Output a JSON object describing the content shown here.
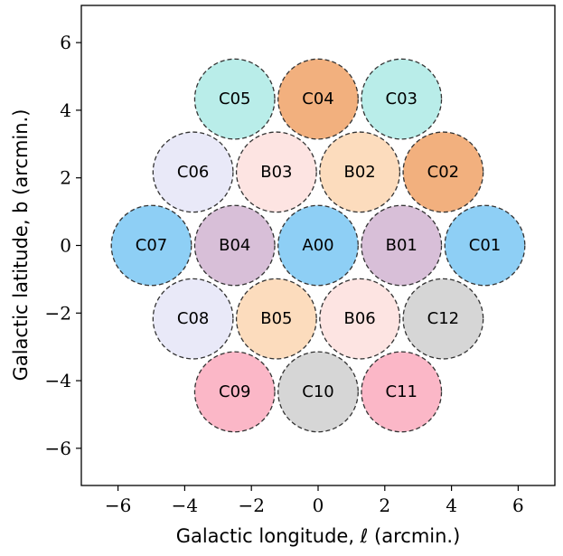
{
  "chart_data": {
    "type": "scatter",
    "title": "",
    "xlabel": "Galactic longitude, ℓ (arcmin.)",
    "ylabel": "Galactic latitude, b (arcmin.)",
    "xlim": [
      -7.1,
      7.1
    ],
    "ylim": [
      -7.1,
      7.1
    ],
    "xticks": [
      -6,
      -4,
      -2,
      0,
      2,
      4,
      6
    ],
    "yticks": [
      -6,
      -4,
      -2,
      0,
      2,
      4,
      6
    ],
    "xtick_labels": [
      "−6",
      "−4",
      "−2",
      "0",
      "2",
      "4",
      "6"
    ],
    "ytick_labels": [
      "−6",
      "−4",
      "−2",
      "0",
      "2",
      "4",
      "6"
    ],
    "grid": false,
    "marker_radius_arcmin": 1.2,
    "points": [
      {
        "label": "A00",
        "x": 0.0,
        "y": 0.0,
        "color": "#8ecff5"
      },
      {
        "label": "B01",
        "x": 2.5,
        "y": 0.0,
        "color": "#d8bfd8"
      },
      {
        "label": "B02",
        "x": 1.25,
        "y": 2.17,
        "color": "#fcdcbd"
      },
      {
        "label": "B03",
        "x": -1.25,
        "y": 2.17,
        "color": "#fde4e2"
      },
      {
        "label": "B04",
        "x": -2.5,
        "y": 0.0,
        "color": "#d8bfd8"
      },
      {
        "label": "B05",
        "x": -1.25,
        "y": -2.17,
        "color": "#fcdcbd"
      },
      {
        "label": "B06",
        "x": 1.25,
        "y": -2.17,
        "color": "#fde4e2"
      },
      {
        "label": "C01",
        "x": 5.0,
        "y": 0.0,
        "color": "#8ecff5"
      },
      {
        "label": "C02",
        "x": 3.75,
        "y": 2.17,
        "color": "#f2b07e"
      },
      {
        "label": "C03",
        "x": 2.5,
        "y": 4.33,
        "color": "#b9ede9"
      },
      {
        "label": "C04",
        "x": 0.0,
        "y": 4.33,
        "color": "#f2b07e"
      },
      {
        "label": "C05",
        "x": -2.5,
        "y": 4.33,
        "color": "#b9ede9"
      },
      {
        "label": "C06",
        "x": -3.75,
        "y": 2.17,
        "color": "#e9e9f8"
      },
      {
        "label": "C07",
        "x": -5.0,
        "y": 0.0,
        "color": "#8ecff5"
      },
      {
        "label": "C08",
        "x": -3.75,
        "y": -2.17,
        "color": "#e9e9f8"
      },
      {
        "label": "C09",
        "x": -2.5,
        "y": -4.33,
        "color": "#fbb7c7"
      },
      {
        "label": "C10",
        "x": 0.0,
        "y": -4.33,
        "color": "#d6d6d6"
      },
      {
        "label": "C11",
        "x": 2.5,
        "y": -4.33,
        "color": "#fbb7c7"
      },
      {
        "label": "C12",
        "x": 3.75,
        "y": -2.17,
        "color": "#d6d6d6"
      }
    ]
  }
}
